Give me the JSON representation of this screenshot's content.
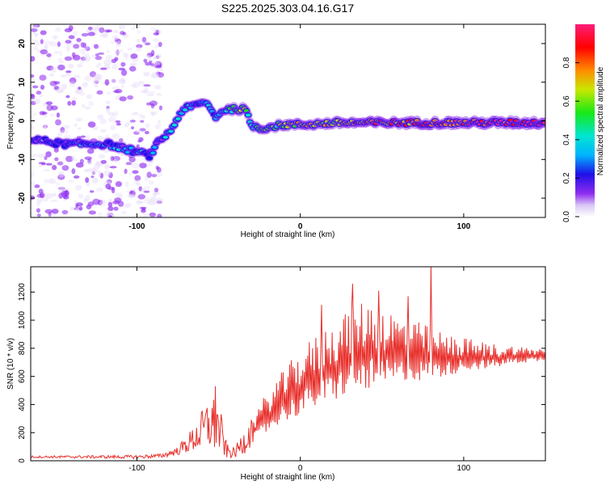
{
  "colors": {
    "snr_line": "#e8302c",
    "colormap": [
      "#e8ddf8",
      "#8f2cf0",
      "#1f10e6",
      "#00b4ff",
      "#00e5d0",
      "#18e818",
      "#c8e800",
      "#ff8c00",
      "#ff0000",
      "#ff1e78"
    ]
  },
  "chart_data": [
    {
      "type": "heatmap",
      "title": "S225.2025.303.04.16.G17",
      "xlabel": "Height of straight line (km)",
      "ylabel": "Frequency (Hz)",
      "xlim": [
        -165,
        150
      ],
      "ylim": [
        -25,
        25
      ],
      "xticks": [
        -100,
        0,
        100
      ],
      "xtick_labels": [
        "-100",
        "0",
        "100"
      ],
      "yticks": [
        -20,
        -10,
        0,
        10,
        20
      ],
      "ytick_labels": [
        "-20",
        "-10",
        "0",
        "10",
        "20"
      ],
      "colorbar": {
        "label": "Normalized spectral amplitude",
        "range": [
          0,
          1
        ],
        "ticks": [
          0,
          0.2,
          0.4,
          0.6,
          0.8
        ],
        "tick_labels": [
          "0.0",
          "0.2",
          "0.4",
          "0.6",
          "0.8"
        ]
      },
      "ridge": {
        "x": [
          -160,
          -145,
          -130,
          -118,
          -110,
          -100,
          -92,
          -86,
          -80,
          -72,
          -64,
          -58,
          -52,
          -46,
          -40,
          -34,
          -30,
          -25,
          -10,
          0,
          25,
          50,
          75,
          100,
          125,
          148
        ],
        "frequency": [
          -5,
          -6,
          -6,
          -6,
          -7,
          -8,
          -9,
          -5,
          -3,
          3,
          4,
          5,
          1,
          3,
          3,
          3,
          -1,
          -2,
          -1,
          -1,
          -0.5,
          -0.5,
          -0.5,
          -0.5,
          -0.5,
          -0.5
        ],
        "amplitude": [
          0.15,
          0.22,
          0.3,
          0.3,
          0.28,
          0.3,
          0.25,
          0.22,
          0.3,
          0.35,
          0.32,
          0.35,
          0.3,
          0.45,
          0.6,
          0.72,
          0.45,
          0.55,
          0.6,
          0.65,
          0.72,
          0.78,
          0.82,
          0.86,
          0.9,
          0.95
        ]
      },
      "background_noise": {
        "x_range": [
          -165,
          -85
        ],
        "frequency_range": [
          -25,
          25
        ],
        "amplitude": 0.15
      }
    },
    {
      "type": "line",
      "xlabel": "Height of straight line (km)",
      "ylabel": "SNR (10 * v/v)",
      "xlim": [
        -165,
        150
      ],
      "ylim": [
        0,
        1380
      ],
      "xticks": [
        -100,
        0,
        100
      ],
      "xtick_labels": [
        "-100",
        "0",
        "100"
      ],
      "yticks": [
        0,
        200,
        400,
        600,
        800,
        1000,
        1200
      ],
      "ytick_labels": [
        "0",
        "200",
        "400",
        "600",
        "800",
        "1000",
        "1200"
      ],
      "series": [
        {
          "name": "SNR",
          "envelope": {
            "x": [
              -165,
              -100,
              -85,
              -75,
              -65,
              -55,
              -50,
              -45,
              -40,
              -35,
              -30,
              -25,
              -20,
              -10,
              0,
              10,
              20,
              30,
              40,
              50,
              60,
              70,
              80,
              90,
              100,
              110,
              120,
              130,
              140,
              150
            ],
            "low": [
              20,
              15,
              20,
              40,
              60,
              60,
              40,
              15,
              20,
              40,
              100,
              150,
              200,
              280,
              320,
              380,
              420,
              470,
              500,
              520,
              540,
              560,
              580,
              600,
              640,
              650,
              660,
              690,
              700,
              710
            ],
            "high": [
              35,
              40,
              50,
              100,
              250,
              480,
              430,
              120,
              90,
              220,
              320,
              400,
              500,
              650,
              800,
              900,
              1000,
              1100,
              1150,
              1100,
              1050,
              1000,
              950,
              900,
              880,
              850,
              830,
              820,
              810,
              800
            ]
          },
          "peaks": [
            {
              "x": 32,
              "y": 1260
            },
            {
              "x": 48,
              "y": 1210
            },
            {
              "x": 80,
              "y": 1390
            },
            {
              "x": -52,
              "y": 530
            },
            {
              "x": 13,
              "y": 1110
            },
            {
              "x": 66,
              "y": 1170
            }
          ]
        }
      ]
    }
  ]
}
